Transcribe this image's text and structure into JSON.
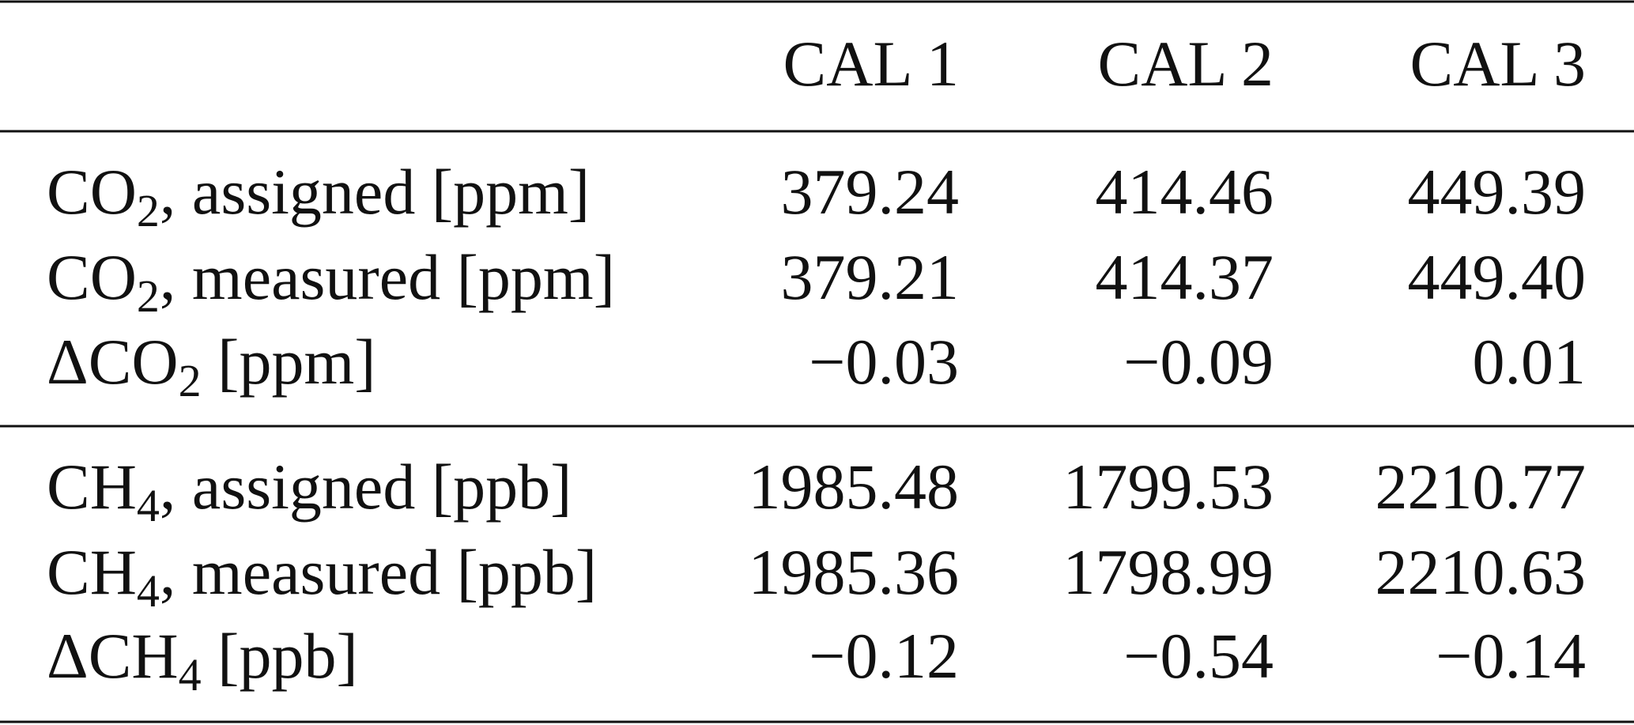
{
  "table": {
    "header": [
      "CAL 1",
      "CAL 2",
      "CAL 3"
    ],
    "groups": [
      [
        {
          "label": [
            "CO",
            "2",
            ", assigned [ppm]"
          ],
          "cells": [
            "379.24",
            "414.46",
            "449.39"
          ]
        },
        {
          "label": [
            "CO",
            "2",
            ", measured [ppm]"
          ],
          "cells": [
            "379.21",
            "414.37",
            "449.40"
          ]
        },
        {
          "label": [
            "ΔCO",
            "2",
            " [ppm]"
          ],
          "cells": [
            "−0.03",
            "−0.09",
            "0.01"
          ]
        }
      ],
      [
        {
          "label": [
            "CH",
            "4",
            ", assigned [ppb]"
          ],
          "cells": [
            "1985.48",
            "1799.53",
            "2210.77"
          ]
        },
        {
          "label": [
            "CH",
            "4",
            ", measured [ppb]"
          ],
          "cells": [
            "1985.36",
            "1798.99",
            "2210.63"
          ]
        },
        {
          "label": [
            "ΔCH",
            "4",
            " [ppb]"
          ],
          "cells": [
            "−0.12",
            "−0.54",
            "−0.14"
          ]
        }
      ]
    ]
  }
}
